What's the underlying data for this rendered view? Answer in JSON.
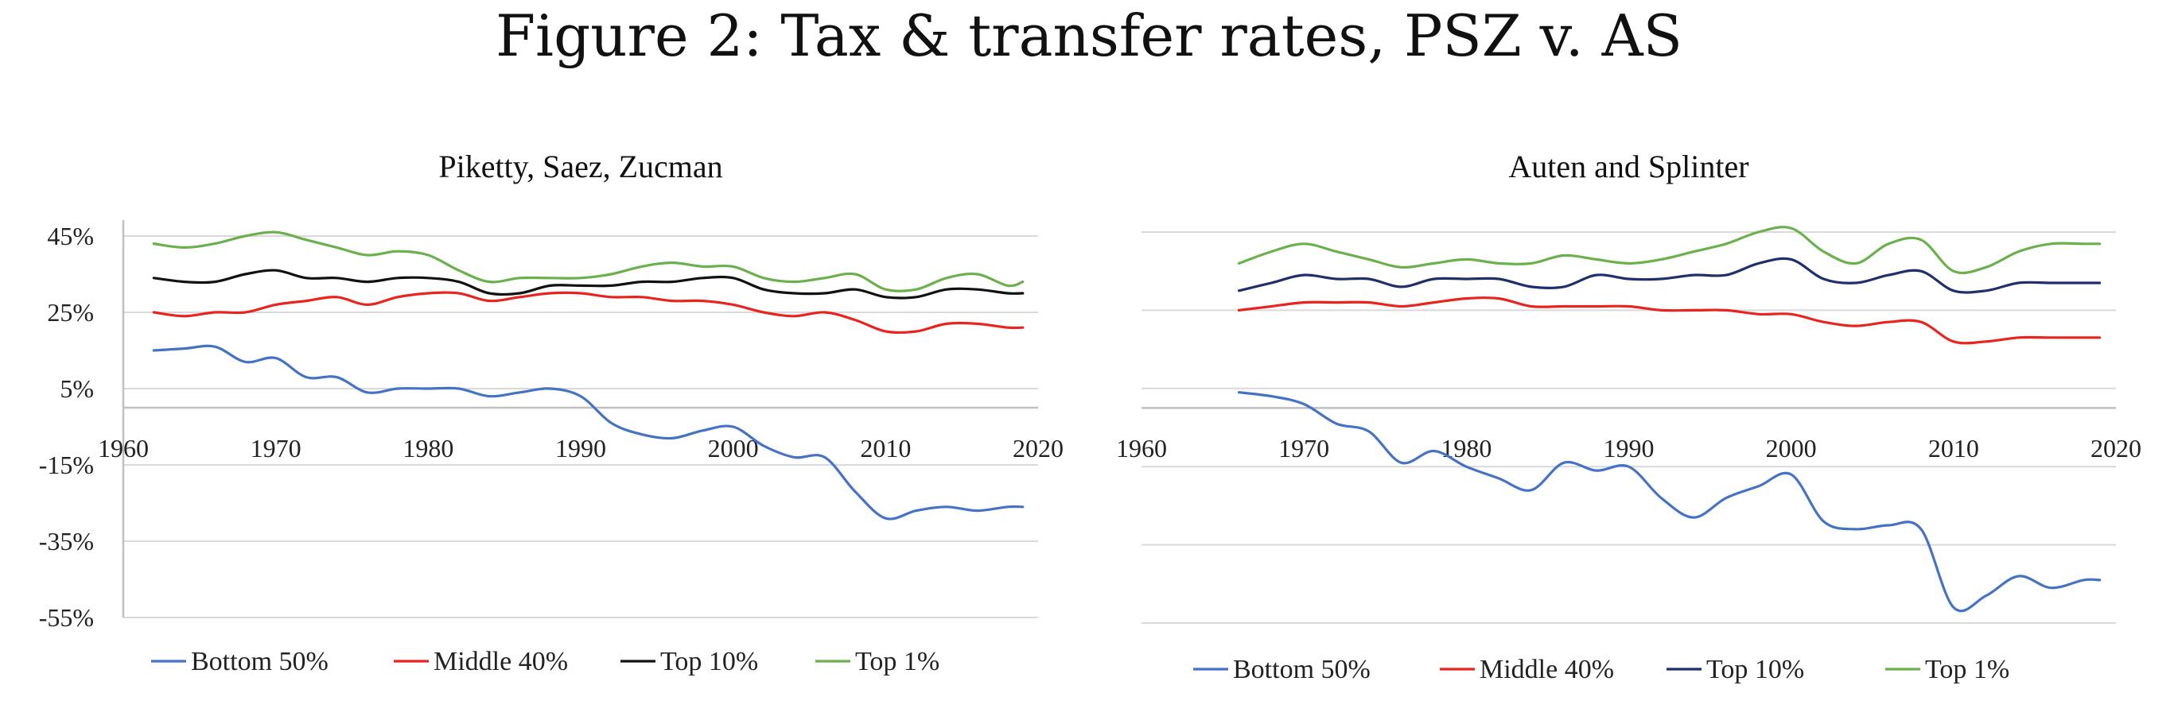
{
  "figure": {
    "title": "Figure 2: Tax & transfer rates, PSZ v. AS"
  },
  "colors": {
    "bottom50": "#4472c4",
    "middle40": "#e8241e",
    "top10_psz": "#111111",
    "top10_as": "#1f2f6b",
    "top1": "#6ab04c"
  },
  "chart_data": [
    {
      "type": "line",
      "title": "Piketty, Saez, Zucman",
      "xlabel": "",
      "ylabel": "",
      "xlim": [
        1960,
        2020
      ],
      "ylim": [
        -55,
        45
      ],
      "x_ticks": [
        1960,
        1970,
        1980,
        1990,
        2000,
        2010,
        2020
      ],
      "y_ticks": [
        45,
        25,
        5,
        -15,
        -35,
        -55
      ],
      "y_tick_labels": [
        "45%",
        "25%",
        "5%",
        "-15%",
        "-35%",
        "-55%"
      ],
      "grid": true,
      "legend_position": "bottom",
      "series": [
        {
          "name": "Bottom 50%",
          "color_key": "bottom50",
          "x": [
            1962,
            1964,
            1966,
            1968,
            1970,
            1972,
            1974,
            1976,
            1978,
            1980,
            1982,
            1984,
            1986,
            1988,
            1990,
            1992,
            1994,
            1996,
            1998,
            2000,
            2002,
            2004,
            2006,
            2008,
            2010,
            2012,
            2014,
            2016,
            2018,
            2019
          ],
          "y": [
            15,
            15.5,
            16,
            12,
            13,
            8,
            8,
            4,
            5,
            5,
            5,
            3,
            4,
            5,
            3,
            -4,
            -7,
            -8,
            -6,
            -5,
            -10,
            -13,
            -13,
            -22,
            -29,
            -27,
            -26,
            -27,
            -26,
            -26
          ]
        },
        {
          "name": "Middle 40%",
          "color_key": "middle40",
          "x": [
            1962,
            1964,
            1966,
            1968,
            1970,
            1972,
            1974,
            1976,
            1978,
            1980,
            1982,
            1984,
            1986,
            1988,
            1990,
            1992,
            1994,
            1996,
            1998,
            2000,
            2002,
            2004,
            2006,
            2008,
            2010,
            2012,
            2014,
            2016,
            2018,
            2019
          ],
          "y": [
            25,
            24,
            25,
            25,
            27,
            28,
            29,
            27,
            29,
            30,
            30,
            28,
            29,
            30,
            30,
            29,
            29,
            28,
            28,
            27,
            25,
            24,
            25,
            23,
            20,
            20,
            22,
            22,
            21,
            21
          ]
        },
        {
          "name": "Top 10%",
          "color_key": "top10_psz",
          "x": [
            1962,
            1964,
            1966,
            1968,
            1970,
            1972,
            1974,
            1976,
            1978,
            1980,
            1982,
            1984,
            1986,
            1988,
            1990,
            1992,
            1994,
            1996,
            1998,
            2000,
            2002,
            2004,
            2006,
            2008,
            2010,
            2012,
            2014,
            2016,
            2018,
            2019
          ],
          "y": [
            34,
            33,
            33,
            35,
            36,
            34,
            34,
            33,
            34,
            34,
            33,
            30,
            30,
            32,
            32,
            32,
            33,
            33,
            34,
            34,
            31,
            30,
            30,
            31,
            29,
            29,
            31,
            31,
            30,
            30
          ]
        },
        {
          "name": "Top 1%",
          "color_key": "top1",
          "x": [
            1962,
            1964,
            1966,
            1968,
            1970,
            1972,
            1974,
            1976,
            1978,
            1980,
            1982,
            1984,
            1986,
            1988,
            1990,
            1992,
            1994,
            1996,
            1998,
            2000,
            2002,
            2004,
            2006,
            2008,
            2010,
            2012,
            2014,
            2016,
            2018,
            2019
          ],
          "y": [
            43,
            42,
            43,
            45,
            46,
            44,
            42,
            40,
            41,
            40,
            36,
            33,
            34,
            34,
            34,
            35,
            37,
            38,
            37,
            37,
            34,
            33,
            34,
            35,
            31,
            31,
            34,
            35,
            32,
            33
          ]
        }
      ]
    },
    {
      "type": "line",
      "title": "Auten and Splinter",
      "xlabel": "",
      "ylabel": "",
      "xlim": [
        1960,
        2020
      ],
      "ylim": [
        -55,
        45
      ],
      "x_ticks": [
        1960,
        1970,
        1980,
        1990,
        2000,
        2010,
        2020
      ],
      "y_ticks": [
        45,
        25,
        5,
        -15,
        -35,
        -55
      ],
      "grid": true,
      "legend_position": "bottom",
      "series": [
        {
          "name": "Bottom 50%",
          "color_key": "bottom50",
          "x": [
            1966,
            1968,
            1970,
            1972,
            1974,
            1976,
            1978,
            1980,
            1982,
            1984,
            1986,
            1988,
            1990,
            1992,
            1994,
            1996,
            1998,
            2000,
            2002,
            2004,
            2006,
            2008,
            2010,
            2012,
            2014,
            2016,
            2018,
            2019
          ],
          "y": [
            4,
            3,
            1,
            -4,
            -6,
            -14,
            -11,
            -15,
            -18,
            -21,
            -14,
            -16,
            -15,
            -23,
            -28,
            -23,
            -20,
            -17,
            -29,
            -31,
            -30,
            -31,
            -51,
            -48,
            -43,
            -46,
            -44,
            -44
          ]
        },
        {
          "name": "Middle 40%",
          "color_key": "middle40",
          "x": [
            1966,
            1968,
            1970,
            1972,
            1974,
            1976,
            1978,
            1980,
            1982,
            1984,
            1986,
            1988,
            1990,
            1992,
            1994,
            1996,
            1998,
            2000,
            2002,
            2004,
            2006,
            2008,
            2010,
            2012,
            2014,
            2016,
            2018,
            2019
          ],
          "y": [
            25,
            26,
            27,
            27,
            27,
            26,
            27,
            28,
            28,
            26,
            26,
            26,
            26,
            25,
            25,
            25,
            24,
            24,
            22,
            21,
            22,
            22,
            17,
            17,
            18,
            18,
            18,
            18
          ]
        },
        {
          "name": "Top 10%",
          "color_key": "top10_as",
          "x": [
            1966,
            1968,
            1970,
            1972,
            1974,
            1976,
            1978,
            1980,
            1982,
            1984,
            1986,
            1988,
            1990,
            1992,
            1994,
            1996,
            1998,
            2000,
            2002,
            2004,
            2006,
            2008,
            2010,
            2012,
            2014,
            2016,
            2018,
            2019
          ],
          "y": [
            30,
            32,
            34,
            33,
            33,
            31,
            33,
            33,
            33,
            31,
            31,
            34,
            33,
            33,
            34,
            34,
            37,
            38,
            33,
            32,
            34,
            35,
            30,
            30,
            32,
            32,
            32,
            32
          ]
        },
        {
          "name": "Top 1%",
          "color_key": "top1",
          "x": [
            1966,
            1968,
            1970,
            1972,
            1974,
            1976,
            1978,
            1980,
            1982,
            1984,
            1986,
            1988,
            1990,
            1992,
            1994,
            1996,
            1998,
            2000,
            2002,
            2004,
            2006,
            2008,
            2010,
            2012,
            2014,
            2016,
            2018,
            2019
          ],
          "y": [
            37,
            40,
            42,
            40,
            38,
            36,
            37,
            38,
            37,
            37,
            39,
            38,
            37,
            38,
            40,
            42,
            45,
            46,
            40,
            37,
            42,
            43,
            35,
            36,
            40,
            42,
            42,
            42
          ]
        }
      ]
    }
  ]
}
